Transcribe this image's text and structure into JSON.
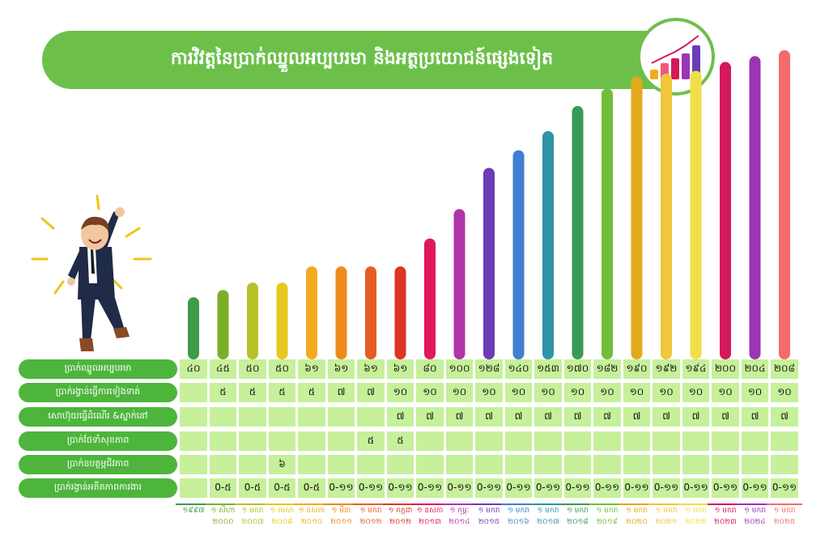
{
  "title": "ការវិវត្តនៃប្រាក់ឈ្នួលអប្បបរមា និងអត្ថប្រយោជន៍ផ្សេងទៀត",
  "chart_data": {
    "type": "bar",
    "categories": [
      "១៩៩៧",
      "១ សីហា ២០០០",
      "១ មករា ២០០៧",
      "១ មេសា ២០០៨",
      "១ ឧសភា ២០១០",
      "១ មីនា ២០១១",
      "១ មករា ២០១២",
      "១ កក្កដា ២០១២",
      "១ ឧសភា ២០១៣",
      "១ កុម្ភៈ ២០១៤",
      "១ មករា ២០១៥",
      "១ មករា ២០១៦",
      "១ មករា ២០១៧",
      "១ មករា ២០១៨",
      "១ មករា ២០១៩",
      "១ មករា ២០២០",
      "១ មករា ២០២១",
      "១ មករា ២០២២",
      "១ មករា ២០២៣",
      "១ មករា ២០២៤",
      "១ មករា ២០២៥"
    ],
    "values": [
      40,
      45,
      50,
      50,
      61,
      61,
      61,
      61,
      80,
      100,
      128,
      140,
      153,
      170,
      182,
      190,
      192,
      194,
      200,
      204,
      208
    ],
    "colors": [
      "#3f9a4a",
      "#7cae2a",
      "#b8c12a",
      "#e8c81f",
      "#f3aa1f",
      "#ee8a1d",
      "#e55d25",
      "#db3626",
      "#e0195a",
      "#b034a8",
      "#6a3cb5",
      "#3f7fcf",
      "#2e94a7",
      "#3a9a55",
      "#73bd3a",
      "#e3a91d",
      "#f0c63a",
      "#f0df49",
      "#d4185c",
      "#9a35b3",
      "#f56a6a"
    ],
    "ylim": [
      0,
      210
    ],
    "table": [
      {
        "label": "ប្រាក់ឈ្នួលអប្បបរមា",
        "values": [
          "៤០",
          "៤៥",
          "៥០",
          "៥០",
          "៦១",
          "៦១",
          "៦១",
          "៦១",
          "៨០",
          "១០០",
          "១២៨",
          "១៤០",
          "១៥៣",
          "១៧០",
          "១៨២",
          "១៩០",
          "១៩២",
          "១៩៤",
          "២០០",
          "២០៤",
          "២០៨"
        ]
      },
      {
        "label": "ប្រាក់រង្វាន់ធ្វើការទៀងទាត់",
        "values": [
          "",
          "៥",
          "៥",
          "៥",
          "៥",
          "៧",
          "៧",
          "១០",
          "១០",
          "១០",
          "១០",
          "១០",
          "១០",
          "១០",
          "១០",
          "១០",
          "១០",
          "១០",
          "១០",
          "១០",
          "១០"
        ]
      },
      {
        "label": "សោហ៊ុយធ្វើដំណើរ &ស្នាក់នៅ",
        "values": [
          "",
          "",
          "",
          "",
          "",
          "",
          "",
          "៧",
          "៧",
          "៧",
          "៧",
          "៧",
          "៧",
          "៧",
          "៧",
          "៧",
          "៧",
          "៧",
          "៧",
          "៧",
          "៧"
        ]
      },
      {
        "label": "ប្រាក់ថែទាំសុខភាព",
        "values": [
          "",
          "",
          "",
          "",
          "",
          "",
          "៥",
          "៥",
          "",
          "",
          "",
          "",
          "",
          "",
          "",
          "",
          "",
          "",
          "",
          "",
          ""
        ]
      },
      {
        "label": "ប្រាក់ឧបត្ថម្ភជីវភាព",
        "values": [
          "",
          "",
          "",
          "៦",
          "",
          "",
          "",
          "",
          "",
          "",
          "",
          "",
          "",
          "",
          "",
          "",
          "",
          "",
          "",
          "",
          ""
        ]
      },
      {
        "label": "ប្រាក់រង្វាន់អតីតភាពការងារ",
        "values": [
          "",
          "0-៥",
          "0-៥",
          "0-៥",
          "0-៥",
          "0-១១",
          "0-១១",
          "0-១១",
          "0-១១",
          "0-១១",
          "0-១១",
          "0-១១",
          "0-១១",
          "0-១១",
          "0-១១",
          "0-១១",
          "0-១១",
          "0-១១",
          "0-១១",
          "0-១១",
          "0-១១"
        ]
      }
    ]
  }
}
